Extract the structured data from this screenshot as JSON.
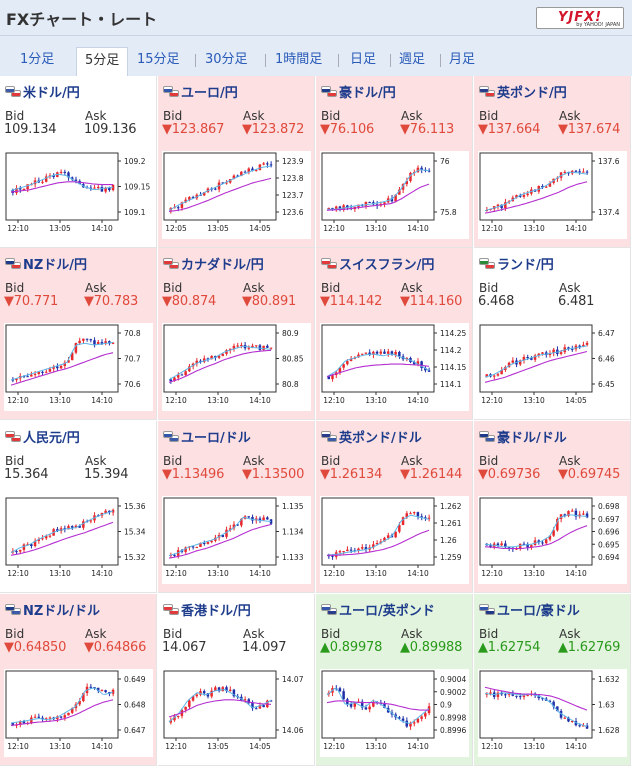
{
  "header": {
    "title": "FXチャート・レート",
    "logo_main": "YJFX!",
    "logo_sub": "by YAHOO! JAPAN"
  },
  "tabs": [
    {
      "label": "1分足",
      "active": false
    },
    {
      "label": "5分足",
      "active": true
    },
    {
      "label": "15分足",
      "active": false
    },
    {
      "label": "30分足",
      "active": false
    },
    {
      "label": "1時間足",
      "active": false
    },
    {
      "label": "日足",
      "active": false
    },
    {
      "label": "週足",
      "active": false
    },
    {
      "label": "月足",
      "active": false
    }
  ],
  "labels": {
    "bid": "Bid",
    "ask": "Ask"
  },
  "pairs": [
    {
      "name": "米ドル/円",
      "bg": "white",
      "dir": "flat",
      "bid": "109.134",
      "ask": "109.136",
      "flags": [
        "#3c5aa8",
        "#e23a3a"
      ],
      "chart": {
        "yticks": [
          "109.2",
          "109.15",
          "109.1"
        ],
        "xticks": [
          "12:10",
          "13:05",
          "14:10"
        ]
      }
    },
    {
      "name": "ユーロ/円",
      "bg": "pink",
      "dir": "down",
      "bid": "▼123.867",
      "ask": "▼123.872",
      "flags": [
        "#3355aa",
        "#e23a3a"
      ],
      "chart": {
        "yticks": [
          "123.9",
          "123.8",
          "123.7",
          "123.6"
        ],
        "xticks": [
          "12:05",
          "13:05",
          "14:05"
        ]
      }
    },
    {
      "name": "豪ドル/円",
      "bg": "pink",
      "dir": "down",
      "bid": "▼76.106",
      "ask": "▼76.113",
      "flags": [
        "#203a8a",
        "#e23a3a"
      ],
      "chart": {
        "yticks": [
          "76",
          "75.8"
        ],
        "xticks": [
          "12:10",
          "13:10",
          "14:10"
        ]
      }
    },
    {
      "name": "英ポンド/円",
      "bg": "pink",
      "dir": "down",
      "bid": "▼137.664",
      "ask": "▼137.674",
      "flags": [
        "#2a3c8c",
        "#e23a3a"
      ],
      "chart": {
        "yticks": [
          "137.6",
          "137.4"
        ],
        "xticks": [
          "12:10",
          "13:10",
          "14:10"
        ]
      }
    },
    {
      "name": "NZドル/円",
      "bg": "pink",
      "dir": "down",
      "bid": "▼70.771",
      "ask": "▼70.783",
      "flags": [
        "#203a8a",
        "#e23a3a"
      ],
      "chart": {
        "yticks": [
          "70.8",
          "70.7",
          "70.6"
        ],
        "xticks": [
          "12:10",
          "13:10",
          "14:10"
        ]
      }
    },
    {
      "name": "カナダドル/円",
      "bg": "pink",
      "dir": "down",
      "bid": "▼80.874",
      "ask": "▼80.891",
      "flags": [
        "#e23a3a",
        "#e23a3a"
      ],
      "chart": {
        "yticks": [
          "80.9",
          "80.85",
          "80.8"
        ],
        "xticks": [
          "12:10",
          "13:10",
          "14:10"
        ]
      }
    },
    {
      "name": "スイスフラン/円",
      "bg": "pink",
      "dir": "down",
      "bid": "▼114.142",
      "ask": "▼114.160",
      "flags": [
        "#e23a3a",
        "#e23a3a"
      ],
      "chart": {
        "yticks": [
          "114.25",
          "114.2",
          "114.15",
          "114.1"
        ],
        "xticks": [
          "12:10",
          "13:10",
          "14:10"
        ]
      }
    },
    {
      "name": "ランド/円",
      "bg": "white",
      "dir": "flat",
      "bid": "6.468",
      "ask": "6.481",
      "flags": [
        "#2a8a3a",
        "#e23a3a"
      ],
      "chart": {
        "yticks": [
          "6.47",
          "6.46",
          "6.45"
        ],
        "xticks": [
          "12:10",
          "13:10",
          "14:05"
        ]
      }
    },
    {
      "name": "人民元/円",
      "bg": "white",
      "dir": "flat",
      "bid": "15.364",
      "ask": "15.394",
      "flags": [
        "#e23a3a",
        "#e23a3a"
      ],
      "chart": {
        "yticks": [
          "15.36",
          "15.34",
          "15.32"
        ],
        "xticks": [
          "12:10",
          "13:10",
          "14:10"
        ]
      }
    },
    {
      "name": "ユーロ/ドル",
      "bg": "pink",
      "dir": "down",
      "bid": "▼1.13496",
      "ask": "▼1.13500",
      "flags": [
        "#3355aa",
        "#3c5aa8"
      ],
      "chart": {
        "yticks": [
          "1.135",
          "1.134",
          "1.133"
        ],
        "xticks": [
          "12:10",
          "13:10",
          "14:10"
        ]
      }
    },
    {
      "name": "英ポンド/ドル",
      "bg": "pink",
      "dir": "down",
      "bid": "▼1.26134",
      "ask": "▼1.26144",
      "flags": [
        "#2a3c8c",
        "#3c5aa8"
      ],
      "chart": {
        "yticks": [
          "1.262",
          "1.261",
          "1.26",
          "1.259"
        ],
        "xticks": [
          "12:10",
          "13:10",
          "14:10"
        ]
      }
    },
    {
      "name": "豪ドル/ドル",
      "bg": "pink",
      "dir": "down",
      "bid": "▼0.69736",
      "ask": "▼0.69745",
      "flags": [
        "#203a8a",
        "#3c5aa8"
      ],
      "chart": {
        "yticks": [
          "0.698",
          "0.697",
          "0.696",
          "0.695",
          "0.694"
        ],
        "xticks": [
          "12:10",
          "13:10",
          "14:10"
        ]
      }
    },
    {
      "name": "NZドル/ドル",
      "bg": "pink",
      "dir": "down",
      "bid": "▼0.64850",
      "ask": "▼0.64866",
      "flags": [
        "#203a8a",
        "#3c5aa8"
      ],
      "chart": {
        "yticks": [
          "0.649",
          "0.648",
          "0.647"
        ],
        "xticks": [
          "12:10",
          "13:10",
          "14:10"
        ]
      }
    },
    {
      "name": "香港ドル/円",
      "bg": "white",
      "dir": "flat",
      "bid": "14.067",
      "ask": "14.097",
      "flags": [
        "#e23a3a",
        "#e23a3a"
      ],
      "chart": {
        "yticks": [
          "14.07",
          "14.06"
        ],
        "xticks": [
          "12:10",
          "13:05",
          "14:05"
        ]
      }
    },
    {
      "name": "ユーロ/英ポンド",
      "bg": "green",
      "dir": "up",
      "bid": "▲0.89978",
      "ask": "▲0.89988",
      "flags": [
        "#3355aa",
        "#2a3c8c"
      ],
      "chart": {
        "yticks": [
          "0.9004",
          "0.9002",
          "0.9",
          "0.8998",
          "0.8996"
        ],
        "xticks": [
          "12:10",
          "13:10",
          "14:10"
        ]
      }
    },
    {
      "name": "ユーロ/豪ドル",
      "bg": "green",
      "dir": "up",
      "bid": "▲1.62754",
      "ask": "▲1.62769",
      "flags": [
        "#3355aa",
        "#203a8a"
      ],
      "chart": {
        "yticks": [
          "1.632",
          "1.63",
          "1.628"
        ],
        "xticks": [
          "12:10",
          "13:10",
          "14:10"
        ]
      }
    }
  ],
  "chart_styles": [
    {
      "trend": [
        0.45,
        0.5,
        0.55,
        0.62,
        0.7,
        0.75,
        0.72,
        0.6,
        0.5,
        0.45,
        0.48,
        0.5
      ],
      "ma": [
        0.42,
        0.44,
        0.46,
        0.5,
        0.54,
        0.58,
        0.6,
        0.6,
        0.58,
        0.56,
        0.55,
        0.55
      ]
    },
    {
      "trend": [
        0.1,
        0.2,
        0.28,
        0.35,
        0.45,
        0.52,
        0.6,
        0.68,
        0.75,
        0.82,
        0.88,
        0.9
      ],
      "ma": [
        0.08,
        0.1,
        0.14,
        0.2,
        0.26,
        0.33,
        0.4,
        0.46,
        0.52,
        0.58,
        0.62,
        0.66
      ]
    },
    {
      "trend": [
        0.12,
        0.12,
        0.15,
        0.18,
        0.2,
        0.22,
        0.25,
        0.3,
        0.5,
        0.75,
        0.85,
        0.82
      ],
      "ma": [
        0.1,
        0.11,
        0.12,
        0.14,
        0.16,
        0.18,
        0.2,
        0.22,
        0.3,
        0.4,
        0.5,
        0.56
      ]
    },
    {
      "trend": [
        0.1,
        0.15,
        0.2,
        0.3,
        0.4,
        0.45,
        0.5,
        0.6,
        0.72,
        0.8,
        0.78,
        0.75
      ],
      "ma": [
        0.05,
        0.08,
        0.12,
        0.16,
        0.2,
        0.25,
        0.3,
        0.36,
        0.42,
        0.5,
        0.56,
        0.6
      ]
    },
    {
      "trend": [
        0.15,
        0.2,
        0.25,
        0.3,
        0.35,
        0.4,
        0.45,
        0.8,
        0.82,
        0.78,
        0.8,
        0.82
      ],
      "ma": [
        0.05,
        0.1,
        0.15,
        0.2,
        0.25,
        0.3,
        0.34,
        0.4,
        0.46,
        0.52,
        0.58,
        0.62
      ]
    },
    {
      "trend": [
        0.15,
        0.25,
        0.35,
        0.45,
        0.5,
        0.55,
        0.65,
        0.7,
        0.75,
        0.72,
        0.7,
        0.68
      ],
      "ma": [
        0.1,
        0.15,
        0.22,
        0.3,
        0.37,
        0.43,
        0.5,
        0.55,
        0.6,
        0.63,
        0.65,
        0.66
      ]
    },
    {
      "trend": [
        0.2,
        0.3,
        0.5,
        0.55,
        0.6,
        0.62,
        0.58,
        0.62,
        0.55,
        0.5,
        0.4,
        0.3
      ],
      "ma": [
        0.2,
        0.25,
        0.3,
        0.35,
        0.38,
        0.4,
        0.41,
        0.42,
        0.42,
        0.41,
        0.4,
        0.38
      ]
    },
    {
      "trend": [
        0.2,
        0.25,
        0.35,
        0.45,
        0.5,
        0.55,
        0.6,
        0.62,
        0.65,
        0.7,
        0.72,
        0.75
      ],
      "ma": [
        0.1,
        0.14,
        0.18,
        0.24,
        0.3,
        0.36,
        0.42,
        0.48,
        0.52,
        0.56,
        0.6,
        0.64
      ]
    },
    {
      "trend": [
        0.15,
        0.25,
        0.3,
        0.4,
        0.48,
        0.55,
        0.58,
        0.6,
        0.7,
        0.78,
        0.85,
        0.9
      ],
      "ma": [
        0.1,
        0.13,
        0.17,
        0.22,
        0.28,
        0.34,
        0.4,
        0.45,
        0.5,
        0.56,
        0.62,
        0.68
      ]
    },
    {
      "trend": [
        0.1,
        0.15,
        0.25,
        0.3,
        0.35,
        0.4,
        0.5,
        0.6,
        0.8,
        0.75,
        0.72,
        0.7
      ],
      "ma": [
        0.05,
        0.08,
        0.12,
        0.18,
        0.22,
        0.28,
        0.34,
        0.4,
        0.48,
        0.55,
        0.6,
        0.64
      ]
    },
    {
      "trend": [
        0.1,
        0.12,
        0.15,
        0.18,
        0.2,
        0.25,
        0.35,
        0.45,
        0.75,
        0.85,
        0.8,
        0.75
      ],
      "ma": [
        0.1,
        0.1,
        0.11,
        0.12,
        0.14,
        0.17,
        0.2,
        0.25,
        0.32,
        0.4,
        0.48,
        0.54
      ]
    },
    {
      "trend": [
        0.3,
        0.28,
        0.25,
        0.25,
        0.28,
        0.3,
        0.35,
        0.45,
        0.8,
        0.85,
        0.82,
        0.8
      ],
      "ma": [
        0.25,
        0.24,
        0.22,
        0.22,
        0.22,
        0.24,
        0.26,
        0.3,
        0.38,
        0.48,
        0.56,
        0.62
      ]
    },
    {
      "trend": [
        0.2,
        0.22,
        0.25,
        0.28,
        0.25,
        0.3,
        0.4,
        0.5,
        0.8,
        0.85,
        0.7,
        0.75
      ],
      "ma": [
        0.15,
        0.17,
        0.19,
        0.21,
        0.22,
        0.24,
        0.28,
        0.34,
        0.42,
        0.5,
        0.56,
        0.6
      ]
    },
    {
      "trend": [
        0.2,
        0.35,
        0.6,
        0.75,
        0.7,
        0.78,
        0.8,
        0.7,
        0.6,
        0.45,
        0.5,
        0.6
      ],
      "ma": [
        0.3,
        0.35,
        0.42,
        0.5,
        0.55,
        0.58,
        0.6,
        0.6,
        0.58,
        0.55,
        0.53,
        0.52
      ]
    },
    {
      "trend": [
        0.7,
        0.85,
        0.5,
        0.55,
        0.45,
        0.6,
        0.5,
        0.35,
        0.2,
        0.15,
        0.3,
        0.45
      ],
      "ma": [
        0.55,
        0.58,
        0.58,
        0.56,
        0.55,
        0.55,
        0.54,
        0.52,
        0.48,
        0.44,
        0.42,
        0.42
      ]
    },
    {
      "trend": [
        0.7,
        0.68,
        0.72,
        0.7,
        0.68,
        0.7,
        0.65,
        0.55,
        0.35,
        0.25,
        0.15,
        0.1
      ],
      "ma": [
        0.82,
        0.78,
        0.75,
        0.72,
        0.7,
        0.7,
        0.69,
        0.67,
        0.62,
        0.55,
        0.48,
        0.42
      ]
    }
  ]
}
